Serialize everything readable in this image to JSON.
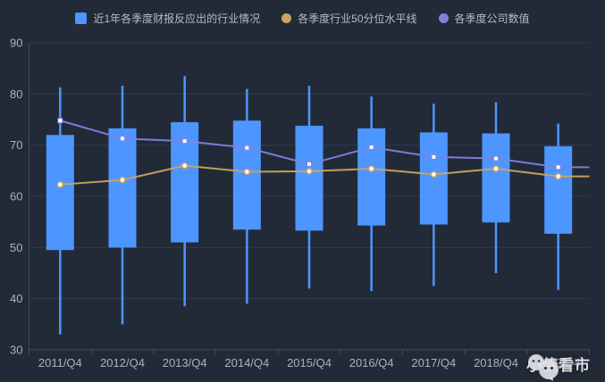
{
  "page": {
    "background_color": "#222a38",
    "text_color": "#b9b8ce"
  },
  "legend": {
    "items": [
      {
        "label": "近1年各季度财报反应出的行业情况",
        "marker": "square",
        "color": "#4d96ff"
      },
      {
        "label": "各季度行业50分位水平线",
        "marker": "circle",
        "color": "#cda35f"
      },
      {
        "label": "各季度公司数值",
        "marker": "circle",
        "color": "#7f82dd"
      }
    ]
  },
  "watermark": {
    "icon": "wechat-logo-icon",
    "label": "小债看市"
  },
  "chart_data": {
    "type": "candlestick+line",
    "title": "",
    "xlabel": "",
    "ylabel": "",
    "ylim": [
      30,
      90
    ],
    "yticks": [
      30,
      40,
      50,
      60,
      70,
      80,
      90
    ],
    "grid": true,
    "legend_position": "top",
    "categories": [
      "2011/Q4",
      "2012/Q4",
      "2013/Q4",
      "2014/Q4",
      "2015/Q4",
      "2016/Q4",
      "2017/Q4",
      "2018/Q4",
      "2019/Q4"
    ],
    "series": [
      {
        "name": "近1年各季度财报反应出的行业情况",
        "type": "candlestick",
        "color": "#4d96ff",
        "data": [
          {
            "low": 33.0,
            "box_low": 49.5,
            "box_high": 72.0,
            "high": 81.3
          },
          {
            "low": 35.0,
            "box_low": 50.0,
            "box_high": 73.3,
            "high": 81.6
          },
          {
            "low": 38.5,
            "box_low": 51.0,
            "box_high": 74.5,
            "high": 83.5
          },
          {
            "low": 39.0,
            "box_low": 53.5,
            "box_high": 74.8,
            "high": 81.0
          },
          {
            "low": 42.0,
            "box_low": 53.3,
            "box_high": 73.8,
            "high": 81.6
          },
          {
            "low": 41.5,
            "box_low": 54.3,
            "box_high": 73.3,
            "high": 79.5
          },
          {
            "low": 42.5,
            "box_low": 54.5,
            "box_high": 72.5,
            "high": 78.1
          },
          {
            "low": 45.0,
            "box_low": 54.9,
            "box_high": 72.3,
            "high": 78.4
          },
          {
            "low": 41.7,
            "box_low": 52.7,
            "box_high": 69.8,
            "high": 74.2
          }
        ]
      },
      {
        "name": "各季度行业50分位水平线",
        "type": "line",
        "color": "#cda35f",
        "point_style": "white-dot-orange-ring",
        "values": [
          62.3,
          63.2,
          66.0,
          64.8,
          64.9,
          65.4,
          64.3,
          65.4,
          63.9
        ]
      },
      {
        "name": "各季度公司数值",
        "type": "line",
        "color": "#7f82dd",
        "point_style": "white-square",
        "values": [
          74.8,
          71.3,
          70.8,
          69.5,
          66.3,
          69.6,
          67.7,
          67.4,
          65.7
        ]
      }
    ],
    "style": {
      "grid_color": "#313b4d",
      "axis_color": "#46506400",
      "axis_line_color": "#434d61",
      "tick_label_color": "#aab0c4"
    }
  }
}
